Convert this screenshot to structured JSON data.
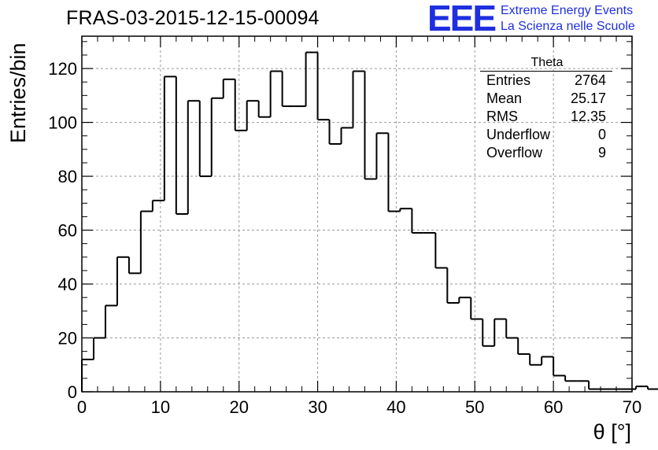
{
  "header": {
    "title": "FRAS-03-2015-12-15-00094",
    "logo_text": "EEE",
    "logo_line1": "Extreme Energy Events",
    "logo_line2": "La Scienza nelle Scuole"
  },
  "stats_box": {
    "name": "Theta",
    "rows": [
      {
        "label": "Entries",
        "value": "2764"
      },
      {
        "label": "Mean",
        "value": "25.17"
      },
      {
        "label": "RMS",
        "value": "12.35"
      },
      {
        "label": "Underflow",
        "value": "0"
      },
      {
        "label": "Overflow",
        "value": "9"
      }
    ]
  },
  "chart_data": {
    "type": "bar",
    "histogram": true,
    "xlabel": "θ [°]",
    "ylabel": "Entries/bin",
    "xlim": [
      0,
      70
    ],
    "ylim": [
      0,
      132
    ],
    "xticks": [
      0,
      10,
      20,
      30,
      40,
      50,
      60,
      70
    ],
    "yticks": [
      0,
      20,
      40,
      60,
      80,
      100,
      120
    ],
    "grid": true,
    "bin_width": 1.5,
    "x_start": 0,
    "values": [
      12,
      20,
      32,
      50,
      44,
      67,
      71,
      117,
      66,
      108,
      80,
      109,
      116,
      97,
      108,
      102,
      119,
      106,
      106,
      126,
      101,
      92,
      98,
      119,
      79,
      96,
      67,
      68,
      59,
      59,
      46,
      33,
      35,
      27,
      17,
      27,
      20,
      14,
      10,
      13,
      6,
      4,
      4,
      1,
      1,
      1,
      1,
      2,
      1
    ]
  }
}
